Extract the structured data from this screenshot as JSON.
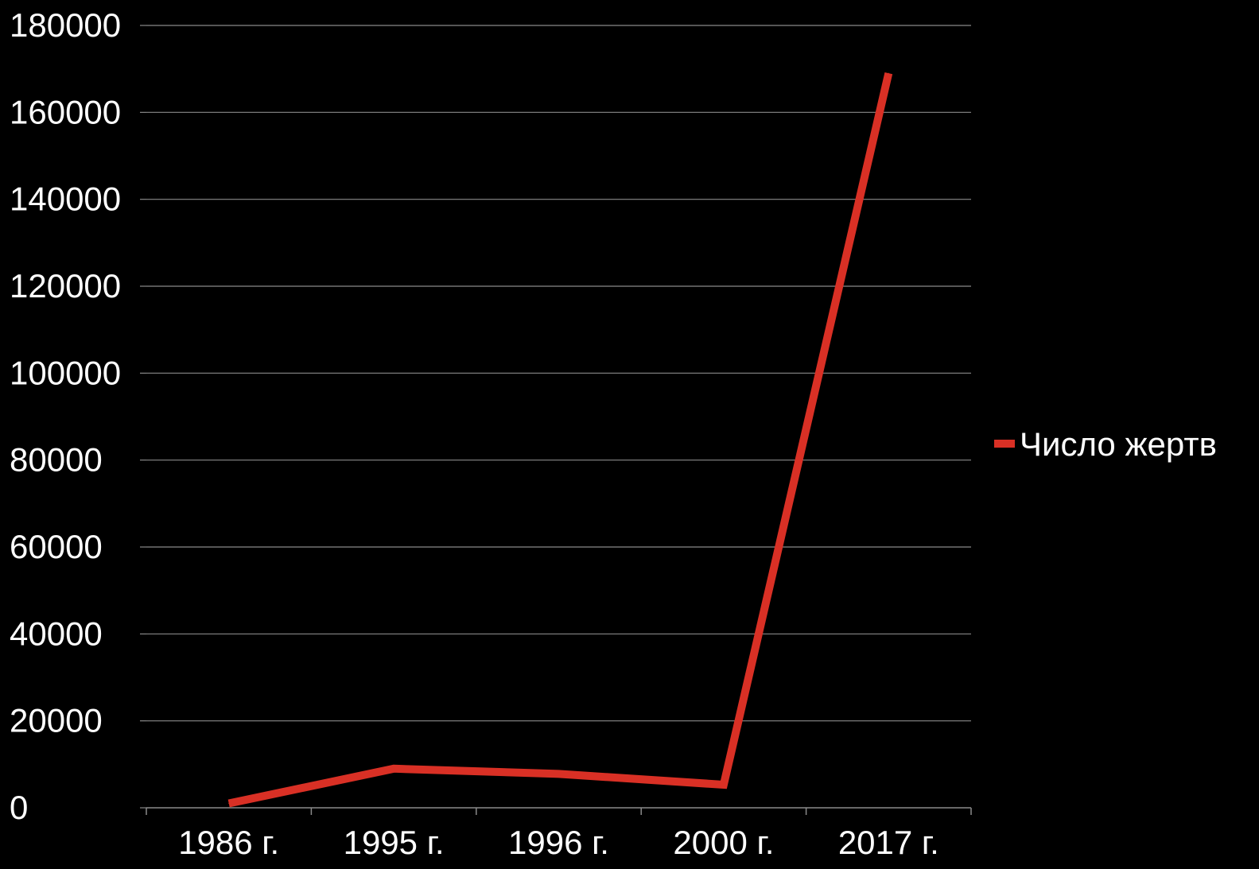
{
  "chart_data": {
    "type": "line",
    "title": "",
    "xlabel": "",
    "ylabel": "",
    "categories": [
      "1986 г.",
      "1995 г.",
      "1996 г.",
      "2000 г.",
      "2017 г."
    ],
    "series": [
      {
        "name": "Число жертв",
        "values": [
          1000,
          9000,
          7800,
          5300,
          169000
        ],
        "color": "#d93025"
      }
    ],
    "ylim": [
      0,
      180000
    ],
    "yticks": [
      0,
      20000,
      40000,
      60000,
      80000,
      100000,
      120000,
      140000,
      160000,
      180000
    ],
    "ytick_labels": [
      "0",
      "20000",
      "40000",
      "60000",
      "80000",
      "100000",
      "120000",
      "140000",
      "160000",
      "180000"
    ],
    "grid": true,
    "legend_position": "right",
    "colors": {
      "background": "#000000",
      "text": "#ffffff",
      "grid": "#8a8a8a",
      "line": "#d93025"
    }
  }
}
